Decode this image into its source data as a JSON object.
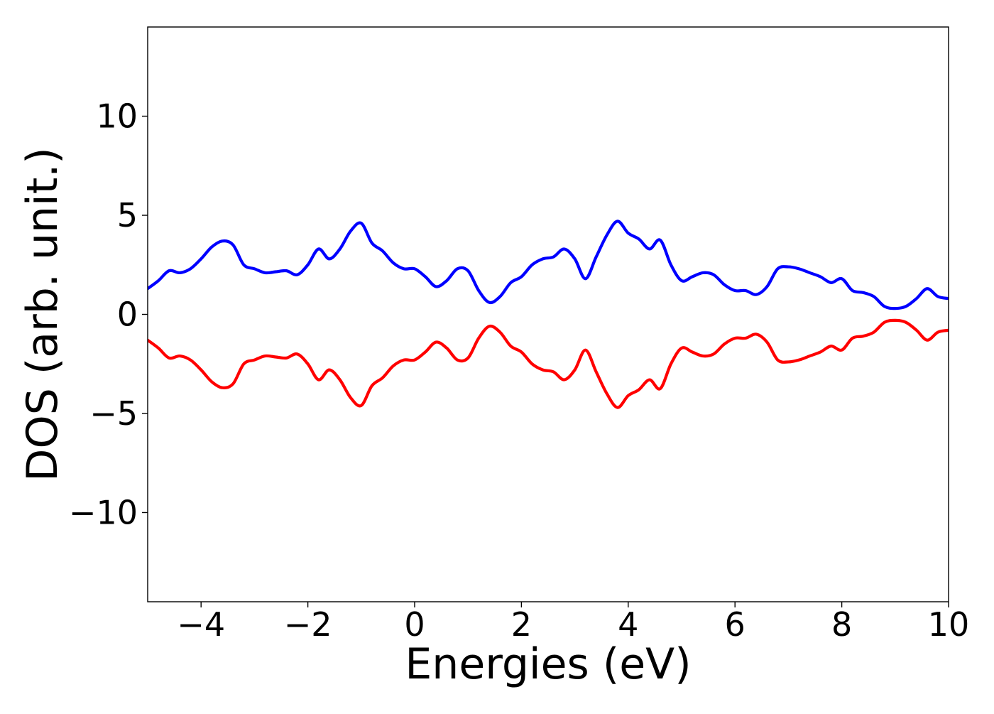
{
  "chart_data": {
    "type": "line",
    "title": "",
    "xlabel": "Energies (eV)",
    "ylabel": "DOS (arb. unit.)",
    "xlim": [
      -5,
      10
    ],
    "ylim": [
      -14.5,
      14.5
    ],
    "xticks": [
      -4,
      -2,
      0,
      2,
      4,
      6,
      8,
      10
    ],
    "xtick_labels": [
      "−4",
      "−2",
      "0",
      "2",
      "4",
      "6",
      "8",
      "10"
    ],
    "yticks": [
      -10,
      -5,
      0,
      5,
      10
    ],
    "ytick_labels": [
      "−10",
      "−5",
      "0",
      "5",
      "10"
    ],
    "grid": false,
    "legend": "none",
    "x": [
      -5.0,
      -4.8,
      -4.6,
      -4.4,
      -4.2,
      -4.0,
      -3.8,
      -3.6,
      -3.4,
      -3.2,
      -3.0,
      -2.8,
      -2.6,
      -2.4,
      -2.2,
      -2.0,
      -1.8,
      -1.6,
      -1.4,
      -1.2,
      -1.0,
      -0.8,
      -0.6,
      -0.4,
      -0.2,
      0.0,
      0.2,
      0.4,
      0.6,
      0.8,
      1.0,
      1.2,
      1.4,
      1.6,
      1.8,
      2.0,
      2.2,
      2.4,
      2.6,
      2.8,
      3.0,
      3.2,
      3.4,
      3.6,
      3.8,
      4.0,
      4.2,
      4.4,
      4.6,
      4.8,
      5.0,
      5.2,
      5.4,
      5.6,
      5.8,
      6.0,
      6.2,
      6.4,
      6.6,
      6.8,
      7.0,
      7.2,
      7.4,
      7.6,
      7.8,
      8.0,
      8.2,
      8.4,
      8.6,
      8.8,
      9.0,
      9.2,
      9.4,
      9.6,
      9.8,
      10.0
    ],
    "series": [
      {
        "color": "#0000ff",
        "values": [
          1.3,
          1.7,
          2.2,
          2.1,
          2.3,
          2.8,
          3.4,
          3.7,
          3.5,
          2.5,
          2.3,
          2.1,
          2.15,
          2.2,
          2.0,
          2.5,
          3.3,
          2.8,
          3.3,
          4.2,
          4.6,
          3.6,
          3.2,
          2.6,
          2.3,
          2.3,
          1.9,
          1.4,
          1.7,
          2.3,
          2.2,
          1.2,
          0.6,
          0.9,
          1.6,
          1.9,
          2.5,
          2.8,
          2.9,
          3.3,
          2.8,
          1.8,
          2.9,
          4.0,
          4.7,
          4.1,
          3.8,
          3.3,
          3.75,
          2.5,
          1.7,
          1.9,
          2.1,
          2.0,
          1.5,
          1.2,
          1.2,
          1.0,
          1.4,
          2.3,
          2.4,
          2.3,
          2.1,
          1.9,
          1.6,
          1.8,
          1.2,
          1.1,
          0.9,
          0.4,
          0.3,
          0.4,
          0.8,
          1.3,
          0.9,
          0.8
        ]
      },
      {
        "color": "#ff0000",
        "values": [
          -1.3,
          -1.7,
          -2.2,
          -2.1,
          -2.3,
          -2.8,
          -3.4,
          -3.7,
          -3.5,
          -2.5,
          -2.3,
          -2.1,
          -2.15,
          -2.2,
          -2.0,
          -2.5,
          -3.3,
          -2.8,
          -3.3,
          -4.2,
          -4.6,
          -3.6,
          -3.2,
          -2.6,
          -2.3,
          -2.3,
          -1.9,
          -1.4,
          -1.7,
          -2.3,
          -2.2,
          -1.2,
          -0.6,
          -0.9,
          -1.6,
          -1.9,
          -2.5,
          -2.8,
          -2.9,
          -3.3,
          -2.8,
          -1.8,
          -2.9,
          -4.0,
          -4.7,
          -4.1,
          -3.8,
          -3.3,
          -3.75,
          -2.5,
          -1.7,
          -1.9,
          -2.1,
          -2.0,
          -1.5,
          -1.2,
          -1.2,
          -1.0,
          -1.4,
          -2.3,
          -2.4,
          -2.3,
          -2.1,
          -1.9,
          -1.6,
          -1.8,
          -1.2,
          -1.1,
          -0.9,
          -0.4,
          -0.3,
          -0.4,
          -0.8,
          -1.3,
          -0.9,
          -0.8
        ]
      }
    ]
  }
}
